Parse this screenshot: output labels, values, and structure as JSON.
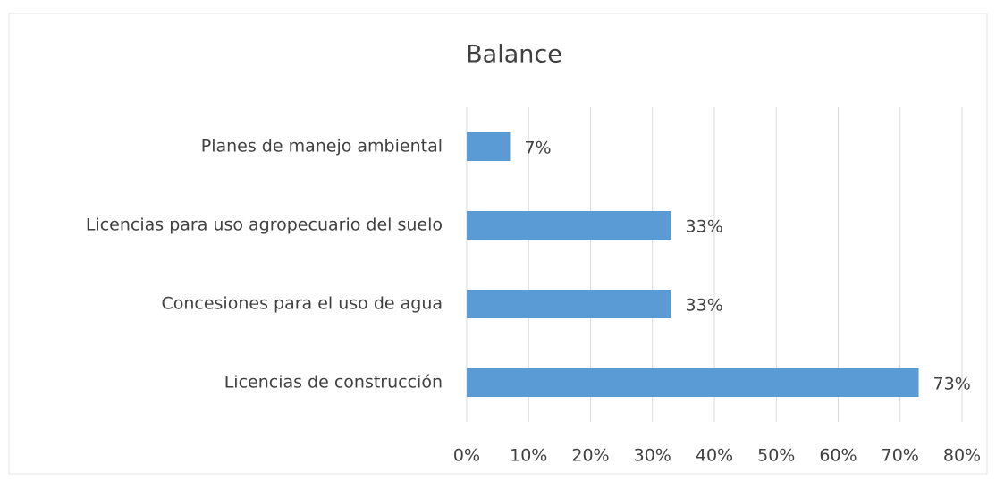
{
  "chart_data": {
    "type": "hbar",
    "title": "Balance",
    "categories": [
      "Planes de manejo ambiental",
      "Licencias para uso agropecuario del suelo",
      "Concesiones para el uso de agua",
      "Licencias de construcción"
    ],
    "values": [
      7,
      33,
      33,
      73
    ],
    "value_labels": [
      "7%",
      "33%",
      "33%",
      "73%"
    ],
    "color": "#5b9bd5",
    "xlim": [
      0,
      80
    ],
    "xticks": [
      {
        "value": 0,
        "label": "0%"
      },
      {
        "value": 10,
        "label": "10%"
      },
      {
        "value": 20,
        "label": "20%"
      },
      {
        "value": 30,
        "label": "30%"
      },
      {
        "value": 40,
        "label": "40%"
      },
      {
        "value": 50,
        "label": "50%"
      },
      {
        "value": 60,
        "label": "60%"
      },
      {
        "value": 70,
        "label": "70%"
      },
      {
        "value": 80,
        "label": "80%"
      }
    ],
    "grid": true
  }
}
